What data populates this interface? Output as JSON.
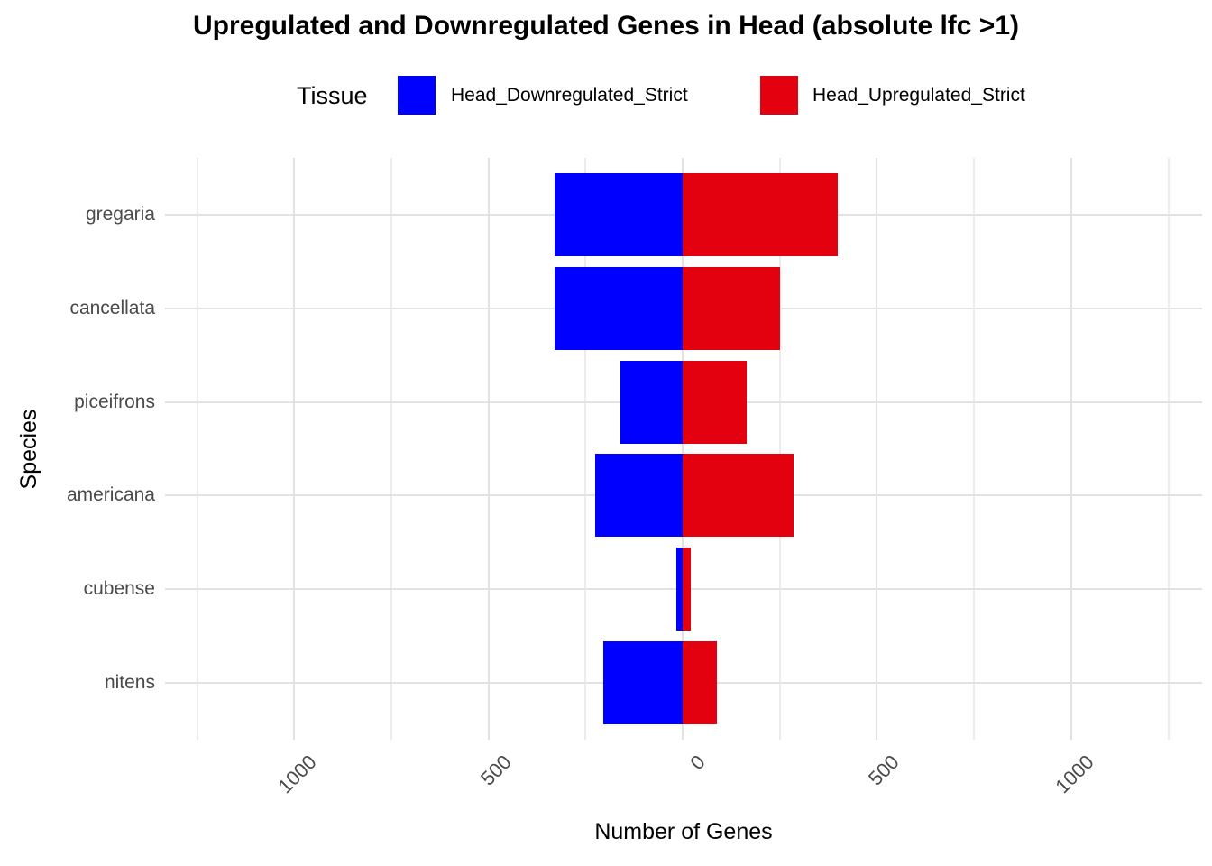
{
  "chart_data": {
    "type": "bar",
    "orientation": "horizontal-diverging",
    "title": "Upregulated and Downregulated Genes in Head (absolute lfc >1)",
    "legend_title": "Tissue",
    "legend_position": "top",
    "xlabel": "Number of Genes",
    "ylabel": "Species",
    "categories": [
      "gregaria",
      "cancellata",
      "piceifrons",
      "americana",
      "cubense",
      "nitens"
    ],
    "series": [
      {
        "name": "Head_Downregulated_Strict",
        "color": "#0000FF",
        "direction": "negative",
        "values": [
          330,
          330,
          160,
          225,
          16,
          205
        ]
      },
      {
        "name": "Head_Upregulated_Strict",
        "color": "#E3000F",
        "direction": "positive",
        "values": [
          400,
          250,
          165,
          285,
          22,
          88
        ]
      }
    ],
    "x_ticks": [
      {
        "value": -1000,
        "label": "1000"
      },
      {
        "value": -500,
        "label": "500"
      },
      {
        "value": 0,
        "label": "0"
      },
      {
        "value": 500,
        "label": "500"
      },
      {
        "value": 1000,
        "label": "1000"
      }
    ],
    "x_minor_gridlines": [
      -1250,
      -750,
      -250,
      250,
      750,
      1250
    ],
    "xlim": [
      -1332,
      1337
    ],
    "grid": true,
    "colors": {
      "grid_major": "#E2E2E2",
      "grid_minor": "#ECECEC",
      "axis_text": "#4A4A4A",
      "title_text": "#000000",
      "background": "#FFFFFF"
    }
  }
}
